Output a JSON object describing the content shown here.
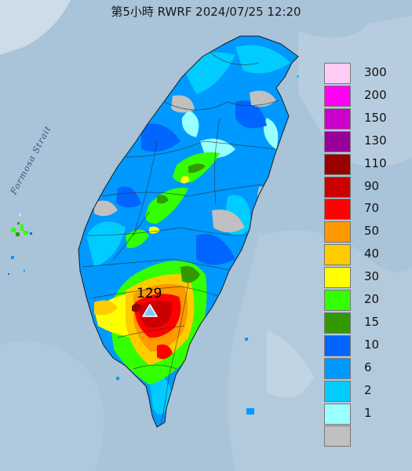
{
  "title": "第5小時  RWRF 2024/07/25 12:20",
  "strait_label": "Formosa Strait",
  "peak_value": "129",
  "legend": [
    {
      "label": "300",
      "color": "#ffcbf4"
    },
    {
      "label": "200",
      "color": "#ff00f5"
    },
    {
      "label": "150",
      "color": "#cc00cc"
    },
    {
      "label": "130",
      "color": "#990099"
    },
    {
      "label": "110",
      "color": "#990000"
    },
    {
      "label": "90",
      "color": "#cc0000"
    },
    {
      "label": "70",
      "color": "#ff0000"
    },
    {
      "label": "50",
      "color": "#ff9900"
    },
    {
      "label": "40",
      "color": "#ffcc00"
    },
    {
      "label": "30",
      "color": "#ffff00"
    },
    {
      "label": "20",
      "color": "#33ff00"
    },
    {
      "label": "15",
      "color": "#339900"
    },
    {
      "label": "10",
      "color": "#0066ff"
    },
    {
      "label": "6",
      "color": "#0099ff"
    },
    {
      "label": "2",
      "color": "#00ccff"
    },
    {
      "label": "1",
      "color": "#99ffff"
    },
    {
      "label": "",
      "color": "#c0c0c0"
    }
  ]
}
